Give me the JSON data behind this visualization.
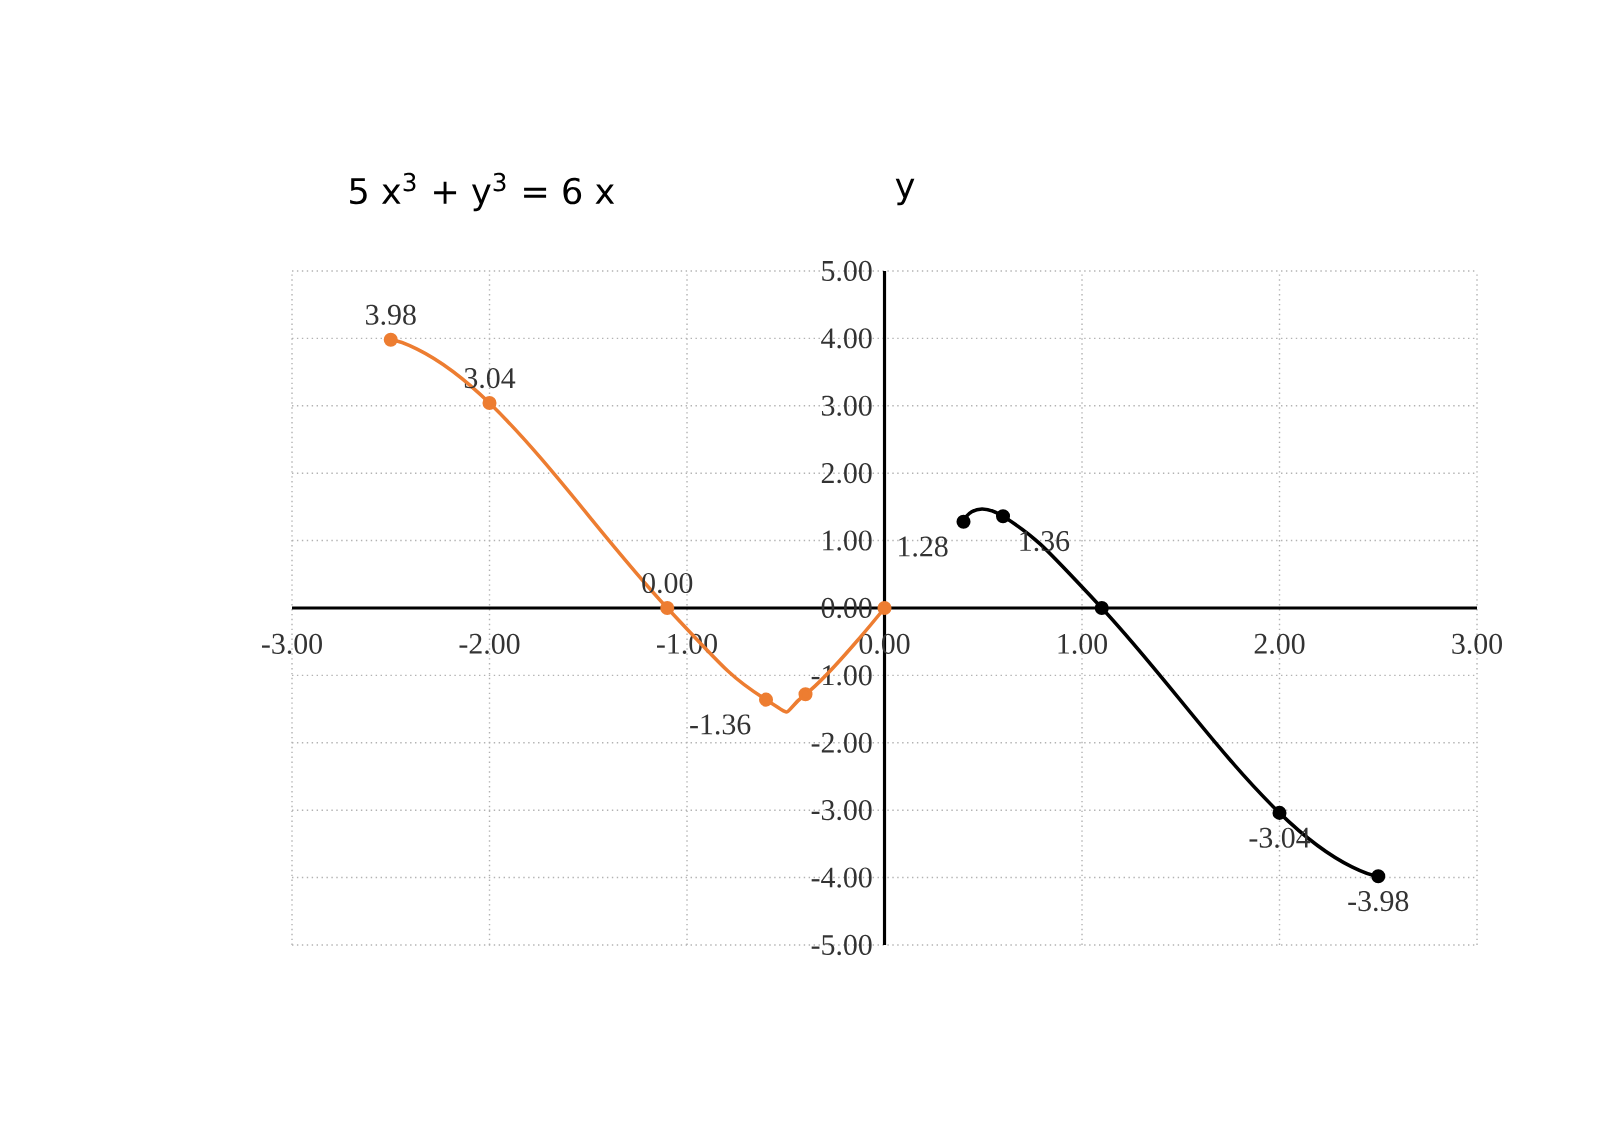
{
  "chart_data": {
    "type": "line",
    "title": "5 x$^{3}$ + y$^{3}$ = 6 x",
    "ylabel": "y",
    "xlim": [
      -3,
      3
    ],
    "ylim": [
      -5,
      5
    ],
    "xticks": [
      {
        "value": -3,
        "label": "-3.00"
      },
      {
        "value": -2,
        "label": "-2.00"
      },
      {
        "value": -1,
        "label": "-1.00"
      },
      {
        "value": 0,
        "label": "0.00"
      },
      {
        "value": 1,
        "label": "1.00"
      },
      {
        "value": 2,
        "label": "2.00"
      },
      {
        "value": 3,
        "label": "3.00"
      }
    ],
    "yticks": [
      {
        "value": -5,
        "label": "-5.00"
      },
      {
        "value": -4,
        "label": "-4.00"
      },
      {
        "value": -3,
        "label": "-3.00"
      },
      {
        "value": -2,
        "label": "-2.00"
      },
      {
        "value": -1,
        "label": "-1.00"
      },
      {
        "value": 0,
        "label": "0.00"
      },
      {
        "value": 1,
        "label": "1.00"
      },
      {
        "value": 2,
        "label": "2.00"
      },
      {
        "value": 3,
        "label": "3.00"
      },
      {
        "value": 4,
        "label": "4.00"
      },
      {
        "value": 5,
        "label": "5.00"
      }
    ],
    "grid": true,
    "marker": "circle",
    "line_style": "solid",
    "series": [
      {
        "color": "#ed7d31",
        "x": [
          -2.5,
          -2.0,
          -1.1,
          -0.6,
          -0.4,
          0
        ],
        "values": [
          3.98,
          3.04,
          0.0,
          -1.36,
          -1.28,
          0
        ],
        "value_labels": [
          "3.98",
          "3.04",
          "0.00",
          "-1.36",
          null,
          null
        ]
      },
      {
        "color": "#000000",
        "x": [
          0.4,
          0.6,
          1.1,
          2.0,
          2.5
        ],
        "values": [
          1.28,
          1.36,
          0.0,
          -3.04,
          -3.98
        ],
        "value_labels": [
          "1.28",
          "1.36",
          null,
          "-3.04",
          "-3.98"
        ]
      }
    ]
  }
}
